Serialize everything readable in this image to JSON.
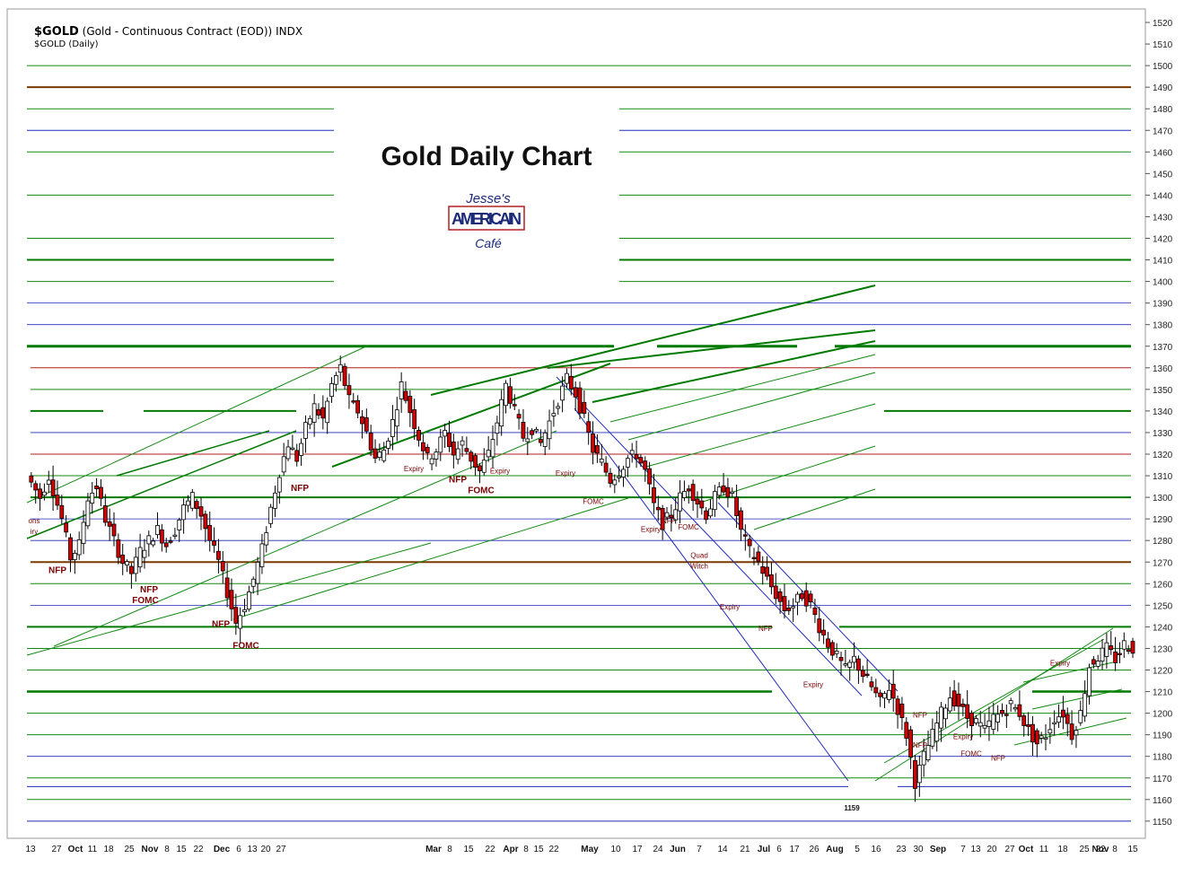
{
  "header": {
    "symbol": "$GOLD",
    "description": "(Gold - Continuous Contract (EOD))",
    "exchange": "INDX",
    "sub": "$GOLD (Daily)"
  },
  "title_box": {
    "title": "Gold Daily Chart",
    "logo_top": "Jesse's",
    "logo_main": "AMERICAIN",
    "logo_bottom": "Café"
  },
  "colors": {
    "up_candle": "#ffffff",
    "down_candle": "#d40000",
    "support_green": "#007a00",
    "thin_green": "#138a13",
    "blue": "#1f2bb5",
    "brown": "#7a3a00",
    "red_line": "#b21e1e",
    "annotation": "#7a0000",
    "grid": "#d0d0d0"
  },
  "chart_data": {
    "type": "candlestick",
    "title": "Gold Daily Chart",
    "ylim": [
      1144,
      1525
    ],
    "y_ticks": [
      1150,
      1160,
      1170,
      1180,
      1190,
      1200,
      1210,
      1220,
      1230,
      1240,
      1250,
      1260,
      1270,
      1280,
      1290,
      1300,
      1310,
      1320,
      1330,
      1340,
      1350,
      1360,
      1370,
      1380,
      1390,
      1400,
      1410,
      1420,
      1430,
      1440,
      1450,
      1460,
      1470,
      1480,
      1490,
      1500,
      1510,
      1520
    ],
    "x_ticks": [
      "13",
      "27",
      "Oct",
      "11",
      "18",
      "25",
      "Nov",
      "8",
      "15",
      "22",
      "Dec",
      "6",
      "13",
      "20",
      "27",
      "Mar",
      "8",
      "15",
      "22",
      "Apr",
      "8",
      "15",
      "22",
      "May",
      "10",
      "17",
      "24",
      "Jun",
      "7",
      "14",
      "21",
      "Jul",
      "6",
      "17",
      "26",
      "Aug",
      "5",
      "16",
      "23",
      "30",
      "Sep",
      "7",
      "13",
      "20",
      "27",
      "Oct",
      "11",
      "18",
      "25",
      "Nov",
      "8",
      "15",
      "22"
    ],
    "price_path": [
      [
        0,
        1310
      ],
      [
        3,
        1300
      ],
      [
        5,
        1310
      ],
      [
        8,
        1290
      ],
      [
        10,
        1272
      ],
      [
        12,
        1278
      ],
      [
        14,
        1300
      ],
      [
        16,
        1305
      ],
      [
        18,
        1290
      ],
      [
        20,
        1280
      ],
      [
        22,
        1270
      ],
      [
        24,
        1265
      ],
      [
        26,
        1275
      ],
      [
        28,
        1280
      ],
      [
        30,
        1285
      ],
      [
        32,
        1278
      ],
      [
        34,
        1285
      ],
      [
        36,
        1295
      ],
      [
        38,
        1300
      ],
      [
        40,
        1292
      ],
      [
        42,
        1280
      ],
      [
        44,
        1270
      ],
      [
        46,
        1256
      ],
      [
        48,
        1242
      ],
      [
        50,
        1250
      ],
      [
        52,
        1262
      ],
      [
        54,
        1276
      ],
      [
        56,
        1295
      ],
      [
        58,
        1312
      ],
      [
        60,
        1325
      ],
      [
        62,
        1318
      ],
      [
        64,
        1332
      ],
      [
        66,
        1342
      ],
      [
        68,
        1336
      ],
      [
        70,
        1352
      ],
      [
        72,
        1360
      ],
      [
        74,
        1345
      ],
      [
        76,
        1340
      ],
      [
        78,
        1330
      ],
      [
        80,
        1318
      ],
      [
        82,
        1322
      ],
      [
        84,
        1335
      ],
      [
        86,
        1352
      ],
      [
        88,
        1340
      ],
      [
        90,
        1328
      ],
      [
        92,
        1318
      ],
      [
        94,
        1322
      ],
      [
        96,
        1330
      ],
      [
        98,
        1320
      ],
      [
        100,
        1325
      ],
      [
        102,
        1318
      ],
      [
        104,
        1312
      ],
      [
        106,
        1320
      ],
      [
        108,
        1335
      ],
      [
        110,
        1352
      ],
      [
        112,
        1340
      ],
      [
        114,
        1328
      ],
      [
        116,
        1332
      ],
      [
        118,
        1325
      ],
      [
        120,
        1335
      ],
      [
        122,
        1345
      ],
      [
        124,
        1355
      ],
      [
        126,
        1348
      ],
      [
        128,
        1336
      ],
      [
        130,
        1322
      ],
      [
        132,
        1316
      ],
      [
        134,
        1308
      ],
      [
        136,
        1312
      ],
      [
        138,
        1318
      ],
      [
        140,
        1320
      ],
      [
        142,
        1312
      ],
      [
        144,
        1296
      ],
      [
        146,
        1288
      ],
      [
        148,
        1292
      ],
      [
        150,
        1300
      ],
      [
        152,
        1305
      ],
      [
        154,
        1298
      ],
      [
        156,
        1292
      ],
      [
        158,
        1300
      ],
      [
        160,
        1305
      ],
      [
        162,
        1300
      ],
      [
        164,
        1284
      ],
      [
        166,
        1275
      ],
      [
        168,
        1270
      ],
      [
        170,
        1262
      ],
      [
        172,
        1255
      ],
      [
        174,
        1248
      ],
      [
        176,
        1250
      ],
      [
        178,
        1255
      ],
      [
        180,
        1250
      ],
      [
        182,
        1240
      ],
      [
        184,
        1232
      ],
      [
        186,
        1226
      ],
      [
        188,
        1220
      ],
      [
        190,
        1225
      ],
      [
        192,
        1218
      ],
      [
        194,
        1212
      ],
      [
        196,
        1205
      ],
      [
        198,
        1212
      ],
      [
        200,
        1202
      ],
      [
        202,
        1190
      ],
      [
        204,
        1168
      ],
      [
        206,
        1180
      ],
      [
        208,
        1190
      ],
      [
        210,
        1200
      ],
      [
        212,
        1208
      ],
      [
        214,
        1204
      ],
      [
        216,
        1198
      ],
      [
        218,
        1196
      ],
      [
        220,
        1192
      ],
      [
        222,
        1198
      ],
      [
        224,
        1200
      ],
      [
        226,
        1204
      ],
      [
        228,
        1200
      ],
      [
        230,
        1192
      ],
      [
        232,
        1186
      ],
      [
        234,
        1190
      ],
      [
        236,
        1198
      ],
      [
        238,
        1200
      ],
      [
        240,
        1190
      ],
      [
        242,
        1200
      ],
      [
        244,
        1222
      ],
      [
        246,
        1226
      ],
      [
        248,
        1230
      ],
      [
        250,
        1225
      ],
      [
        252,
        1232
      ],
      [
        254,
        1230
      ]
    ],
    "annotations": [
      {
        "text": "NFP",
        "price": 1265
      },
      {
        "text": "NFP",
        "price": 1256
      },
      {
        "text": "FOMC",
        "price": 1251
      },
      {
        "text": "NFP",
        "price": 1240
      },
      {
        "text": "FOMC",
        "price": 1230
      },
      {
        "text": "NFP",
        "price": 1303
      },
      {
        "text": "Expiry",
        "price": 1312
      },
      {
        "text": "NFP",
        "price": 1307
      },
      {
        "text": "FOMC",
        "price": 1302
      },
      {
        "text": "Expiry",
        "price": 1311
      },
      {
        "text": "Expiry",
        "price": 1310
      },
      {
        "text": "FOMC",
        "price": 1297
      },
      {
        "text": "NFP",
        "price": 1288
      },
      {
        "text": "Expiry",
        "price": 1284
      },
      {
        "text": "FOMC",
        "price": 1285
      },
      {
        "text": "Quad",
        "price": 1272
      },
      {
        "text": "Witch",
        "price": 1267
      },
      {
        "text": "Expiry",
        "price": 1248
      },
      {
        "text": "NFP",
        "price": 1238
      },
      {
        "text": "Expiry",
        "price": 1212
      },
      {
        "text": "NFP",
        "price": 1198
      },
      {
        "text": "1159",
        "price": 1155
      },
      {
        "text": "NFP",
        "price": 1184
      },
      {
        "text": "Expiry",
        "price": 1188
      },
      {
        "text": "FOMC",
        "price": 1180
      },
      {
        "text": "NFP",
        "price": 1178
      },
      {
        "text": "Expiry",
        "price": 1222
      },
      {
        "text": "ons",
        "price": 1288
      },
      {
        "text": "iry",
        "price": 1283
      }
    ]
  }
}
